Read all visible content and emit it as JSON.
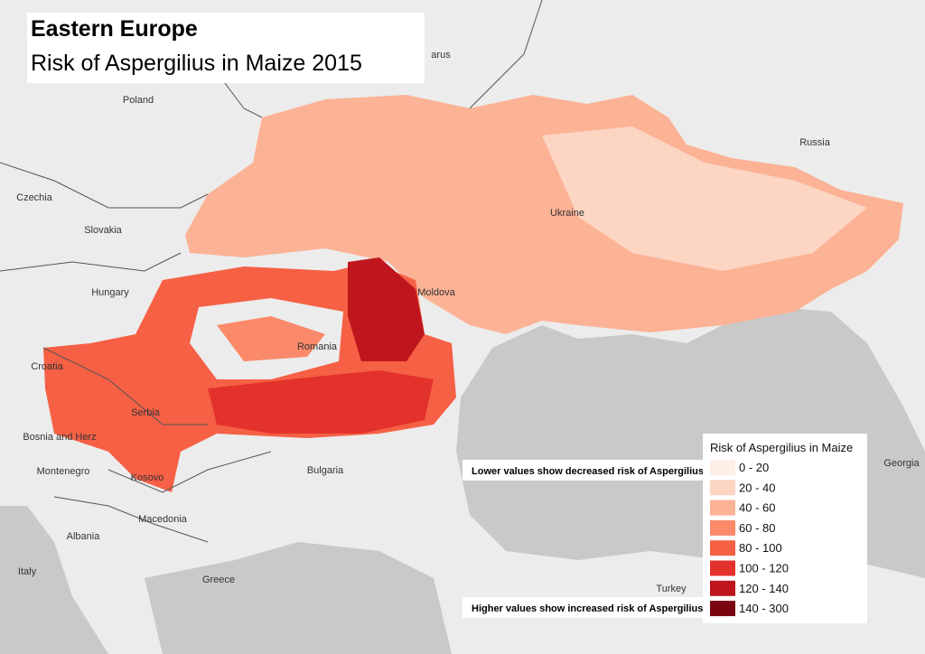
{
  "header": {
    "title": "Eastern Europe",
    "subtitle": "Risk of Aspergilius in Maize 2015"
  },
  "places": [
    "arus",
    "Poland",
    "Czechia",
    "Slovakia",
    "Hungary",
    "Moldova",
    "Romania",
    "Ukraine",
    "Russia",
    "Croatia",
    "Serbia",
    "Bosnia and Herz",
    "Montenegro",
    "Kosovo",
    "Bulgaria",
    "Macedonia",
    "Albania",
    "Italy",
    "Greece",
    "Turkey",
    "Georgia"
  ],
  "notes": {
    "low": "Lower values show decreased risk of Aspergilius",
    "high": "Higher values show increased risk of Aspergilius"
  },
  "legend": {
    "title": "Risk of Aspergilius in Maize",
    "items": [
      {
        "label": "0 - 20",
        "color": "#fdeee6"
      },
      {
        "label": "20 - 40",
        "color": "#fcd5c3"
      },
      {
        "label": "40 - 60",
        "color": "#fcb295"
      },
      {
        "label": "60 - 80",
        "color": "#fb8a6a"
      },
      {
        "label": "80 - 100",
        "color": "#f66045"
      },
      {
        "label": "100 - 120",
        "color": "#e3322b"
      },
      {
        "label": "120 - 140",
        "color": "#bf161d"
      },
      {
        "label": "140 - 300",
        "color": "#7a0510"
      }
    ]
  }
}
